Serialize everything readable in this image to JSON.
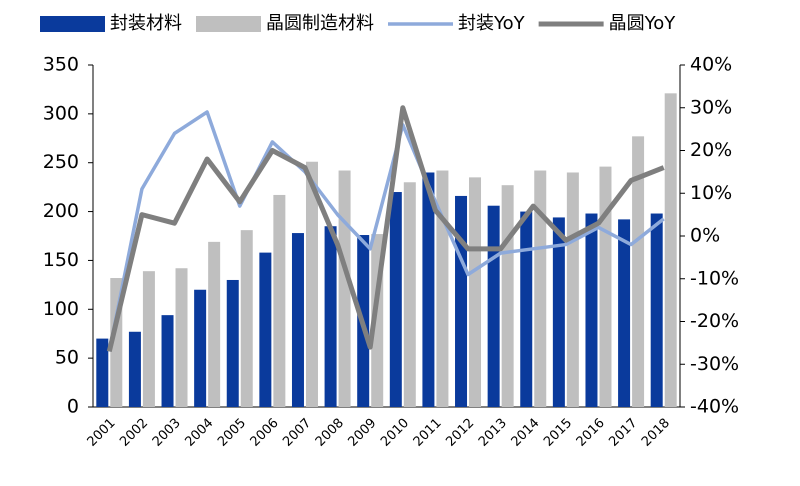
{
  "chart_data": {
    "type": "bar",
    "categories": [
      "2001",
      "2002",
      "2003",
      "2004",
      "2005",
      "2006",
      "2007",
      "2008",
      "2009",
      "2010",
      "2011",
      "2012",
      "2013",
      "2014",
      "2015",
      "2016",
      "2017",
      "2018"
    ],
    "series": [
      {
        "name": "封装材料",
        "color": "#0a3a9c",
        "values": [
          70,
          77,
          94,
          120,
          130,
          158,
          178,
          185,
          176,
          220,
          240,
          216,
          206,
          200,
          194,
          198,
          192,
          198
        ]
      },
      {
        "name": "晶圆制造材料",
        "color": "#bfbfbf",
        "values": [
          132,
          139,
          142,
          169,
          181,
          217,
          251,
          242,
          177,
          230,
          242,
          235,
          227,
          242,
          240,
          246,
          277,
          321
        ]
      },
      {
        "name": "封装YoY",
        "color": "#8eaadb",
        "type": "line",
        "axis": "y2",
        "values": [
          -27,
          11,
          24,
          29,
          7,
          22,
          15,
          5,
          -3,
          26,
          8,
          -9,
          -4,
          -3,
          -2,
          2,
          -2,
          4
        ]
      },
      {
        "name": "晶圆YoY",
        "color": "#7f7f7f",
        "type": "line",
        "axis": "y2",
        "values": [
          -27,
          5,
          3,
          18,
          8,
          20,
          16,
          -2,
          -26,
          30,
          6,
          -3,
          -3,
          7,
          -1,
          3,
          13,
          16
        ]
      }
    ],
    "ylim": [
      0,
      350
    ],
    "yticks": [
      0,
      50,
      100,
      150,
      200,
      250,
      300,
      350
    ],
    "y2lim": [
      -40,
      40
    ],
    "y2ticks": [
      {
        "value": -40,
        "label": "-40%"
      },
      {
        "value": -30,
        "label": "-30%"
      },
      {
        "value": -20,
        "label": "-20%"
      },
      {
        "value": -10,
        "label": "-10%"
      },
      {
        "value": 0,
        "label": "0%"
      },
      {
        "value": 10,
        "label": "10%"
      },
      {
        "value": 20,
        "label": "20%"
      },
      {
        "value": 30,
        "label": "30%"
      },
      {
        "value": 40,
        "label": "40%"
      }
    ]
  }
}
